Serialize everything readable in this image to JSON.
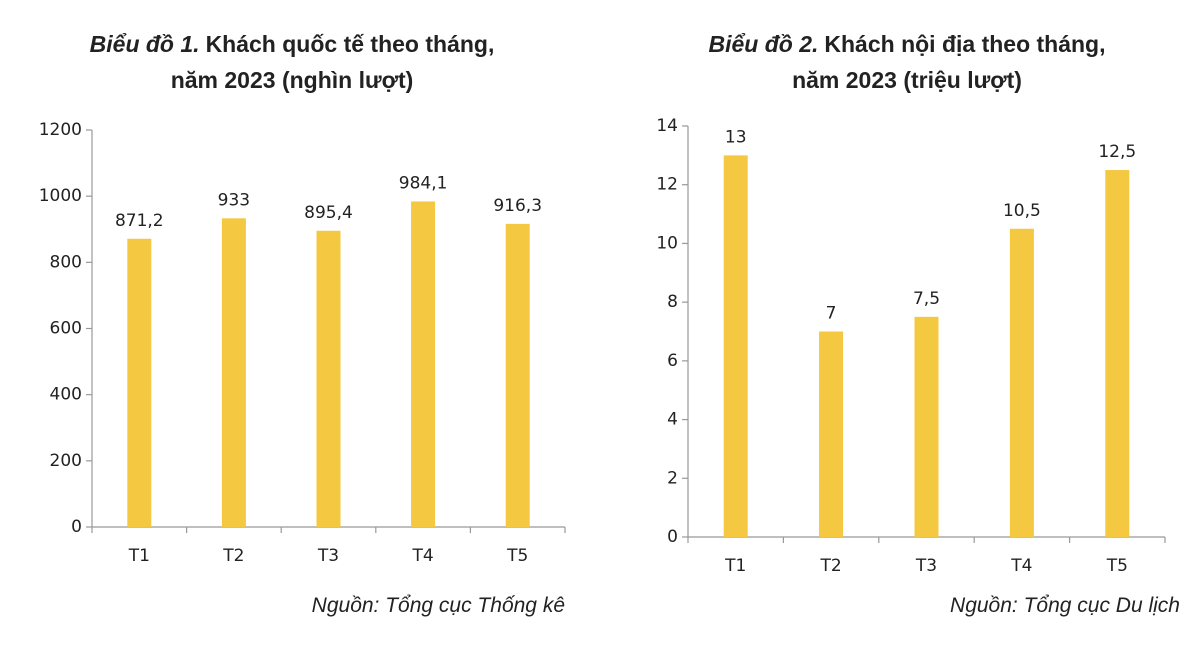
{
  "chart_data": [
    {
      "type": "bar",
      "title_label": "Biểu đồ 1.",
      "title": "Khách quốc tế theo tháng,",
      "subtitle": "năm 2023 (nghìn lượt)",
      "categories": [
        "T1",
        "T2",
        "T3",
        "T4",
        "T5"
      ],
      "values": [
        871.2,
        933,
        895.4,
        984.1,
        916.3
      ],
      "value_labels": [
        "871,2",
        "933",
        "895,4",
        "984,1",
        "916,3"
      ],
      "color": "#f5c842",
      "ylim": [
        0,
        1200
      ],
      "yticks": [
        0,
        200,
        400,
        600,
        800,
        1000,
        1200
      ],
      "source": "Nguồn: Tổng cục Thống kê"
    },
    {
      "type": "bar",
      "title_label": "Biểu đồ 2.",
      "title": "Khách nội địa theo tháng,",
      "subtitle": "năm 2023 (triệu lượt)",
      "categories": [
        "T1",
        "T2",
        "T3",
        "T4",
        "T5"
      ],
      "values": [
        13,
        7,
        7.5,
        10.5,
        12.5
      ],
      "value_labels": [
        "13",
        "7",
        "7,5",
        "10,5",
        "12,5"
      ],
      "color": "#f5c842",
      "ylim": [
        0,
        14
      ],
      "yticks": [
        0,
        2,
        4,
        6,
        8,
        10,
        12,
        14
      ],
      "source": "Nguồn: Tổng cục Du lịch"
    }
  ]
}
